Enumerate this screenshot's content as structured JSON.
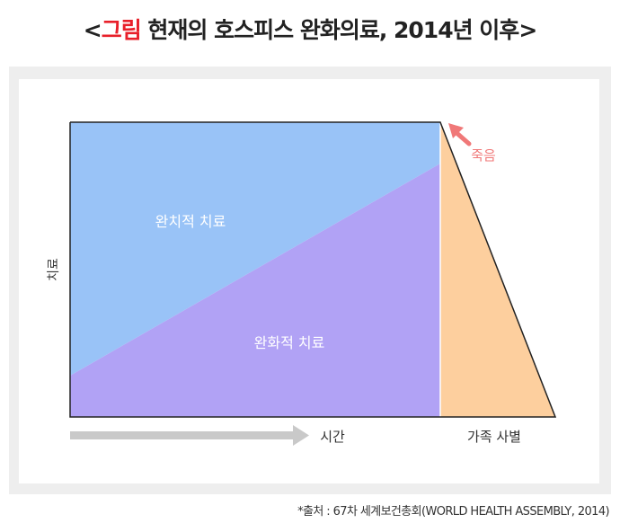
{
  "title": {
    "open_bracket": "<",
    "accent": "그림",
    "main": " 현재의 호스피스 완화의료, 2014년 이후",
    "close_bracket": ">"
  },
  "diagram": {
    "curative_label": "완치적 치료",
    "palliative_label": "완화적 치료",
    "y_axis_label": "치료",
    "time_label": "시간",
    "bereavement_label": "가족 사별",
    "death_label": "죽음",
    "colors": {
      "curative": "#99c3f7",
      "palliative": "#b1a2f5",
      "bereavement": "#fdcf9e",
      "death": "#f07878",
      "arrow_gray": "#c9c9c9",
      "title_accent": "#e8202a"
    }
  },
  "source": "*출처 : 67차 세계보건총회(WORLD HEALTH ASSEMBLY, 2014)"
}
